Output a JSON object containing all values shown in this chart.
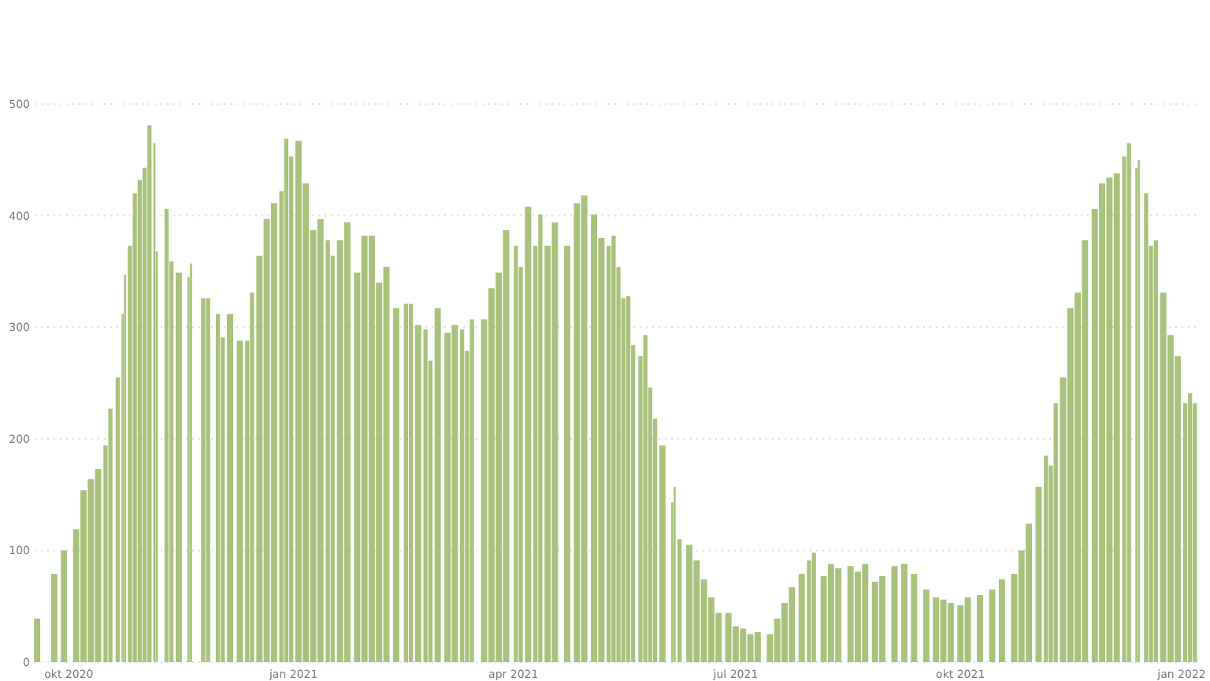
{
  "chart_data": {
    "type": "bar",
    "color": "#a9c27c",
    "x": [
      "2020-09-18",
      "2020-09-25",
      "2020-09-29",
      "2020-10-04",
      "2020-10-07",
      "2020-10-10",
      "2020-10-13",
      "2020-10-16",
      "2020-10-18",
      "2020-10-21",
      "2020-10-23",
      "2020-10-24",
      "2020-10-26",
      "2020-10-28",
      "2020-10-30",
      "2020-11-01",
      "2020-11-03",
      "2020-11-05",
      "2020-11-06",
      "2020-11-10",
      "2020-11-12",
      "2020-11-15",
      "2020-11-19",
      "2020-11-20",
      "2020-11-25",
      "2020-11-27",
      "2020-12-01",
      "2020-12-03",
      "2020-12-06",
      "2020-12-10",
      "2020-12-13",
      "2020-12-15",
      "2020-12-18",
      "2020-12-21",
      "2020-12-24",
      "2020-12-27",
      "2020-12-29",
      "2020-12-31",
      "2021-01-03",
      "2021-01-06",
      "2021-01-09",
      "2021-01-12",
      "2021-01-15",
      "2021-01-17",
      "2021-01-20",
      "2021-01-23",
      "2021-01-27",
      "2021-01-30",
      "2021-02-02",
      "2021-02-05",
      "2021-02-08",
      "2021-02-12",
      "2021-02-16",
      "2021-02-18",
      "2021-02-21",
      "2021-02-24",
      "2021-02-26",
      "2021-03-01",
      "2021-03-05",
      "2021-03-08",
      "2021-03-11",
      "2021-03-13",
      "2021-03-15",
      "2021-03-20",
      "2021-03-23",
      "2021-03-26",
      "2021-03-29",
      "2021-04-02",
      "2021-04-04",
      "2021-04-07",
      "2021-04-10",
      "2021-04-12",
      "2021-04-15",
      "2021-04-18",
      "2021-04-23",
      "2021-04-27",
      "2021-04-30",
      "2021-05-04",
      "2021-05-07",
      "2021-05-10",
      "2021-05-12",
      "2021-05-14",
      "2021-05-16",
      "2021-05-18",
      "2021-05-20",
      "2021-05-23",
      "2021-05-25",
      "2021-05-27",
      "2021-05-29",
      "2021-06-01",
      "2021-06-05",
      "2021-06-06",
      "2021-06-08",
      "2021-06-12",
      "2021-06-15",
      "2021-06-18",
      "2021-06-21",
      "2021-06-24",
      "2021-06-28",
      "2021-07-01",
      "2021-07-04",
      "2021-07-07",
      "2021-07-10",
      "2021-07-15",
      "2021-07-18",
      "2021-07-21",
      "2021-07-24",
      "2021-07-28",
      "2021-07-31",
      "2021-08-02",
      "2021-08-06",
      "2021-08-09",
      "2021-08-12",
      "2021-08-17",
      "2021-08-20",
      "2021-08-23",
      "2021-08-27",
      "2021-08-30",
      "2021-09-04",
      "2021-09-08",
      "2021-09-12",
      "2021-09-17",
      "2021-09-21",
      "2021-09-24",
      "2021-09-27",
      "2021-10-01",
      "2021-10-04",
      "2021-10-09",
      "2021-10-14",
      "2021-10-18",
      "2021-10-23",
      "2021-10-26",
      "2021-10-29",
      "2021-11-02",
      "2021-11-05",
      "2021-11-07",
      "2021-11-09",
      "2021-11-12",
      "2021-11-15",
      "2021-11-18",
      "2021-11-21",
      "2021-11-25",
      "2021-11-28",
      "2021-12-01",
      "2021-12-04",
      "2021-12-07",
      "2021-12-09",
      "2021-12-12",
      "2021-12-13",
      "2021-12-16",
      "2021-12-18",
      "2021-12-20",
      "2021-12-23",
      "2021-12-26",
      "2021-12-29",
      "2022-01-01",
      "2022-01-03",
      "2022-01-05"
    ],
    "values": [
      39,
      79,
      100,
      119,
      154,
      164,
      173,
      194,
      227,
      255,
      312,
      347,
      373,
      420,
      432,
      443,
      481,
      465,
      368,
      406,
      359,
      349,
      345,
      357,
      326,
      326,
      312,
      291,
      312,
      288,
      288,
      331,
      364,
      397,
      411,
      422,
      469,
      453,
      467,
      429,
      387,
      397,
      378,
      364,
      378,
      394,
      349,
      382,
      382,
      340,
      354,
      317,
      321,
      321,
      302,
      298,
      270,
      317,
      295,
      302,
      298,
      279,
      307,
      307,
      335,
      349,
      387,
      373,
      354,
      408,
      373,
      401,
      373,
      394,
      373,
      411,
      418,
      401,
      380,
      373,
      382,
      354,
      326,
      328,
      284,
      274,
      293,
      246,
      218,
      194,
      143,
      157,
      110,
      105,
      91,
      74,
      58,
      44,
      44,
      32,
      30,
      25,
      27,
      25,
      39,
      53,
      67,
      79,
      91,
      98,
      77,
      88,
      84,
      86,
      81,
      88,
      72,
      77,
      86,
      88,
      79,
      65,
      58,
      56,
      53,
      51,
      58,
      60,
      65,
      74,
      79,
      100,
      124,
      157,
      185,
      176,
      232,
      255,
      317,
      331,
      378,
      406,
      429,
      434,
      438,
      453,
      465,
      443,
      450,
      420,
      373,
      378,
      331,
      293,
      274,
      232,
      241,
      232
    ],
    "xlim": [
      "2020-09-17",
      "2022-01-06"
    ],
    "xticks": [
      {
        "value": "2020-10-01",
        "label": "okt 2020"
      },
      {
        "value": "2021-01-01",
        "label": "jan 2021"
      },
      {
        "value": "2021-04-01",
        "label": "apr 2021"
      },
      {
        "value": "2021-07-01",
        "label": "jul 2021"
      },
      {
        "value": "2021-10-01",
        "label": "okt 2021"
      },
      {
        "value": "2022-01-01",
        "label": "jan 2022"
      }
    ],
    "ylim": [
      0,
      500
    ],
    "yticks": [
      0,
      100,
      200,
      300,
      400,
      500
    ],
    "grid": "y"
  }
}
